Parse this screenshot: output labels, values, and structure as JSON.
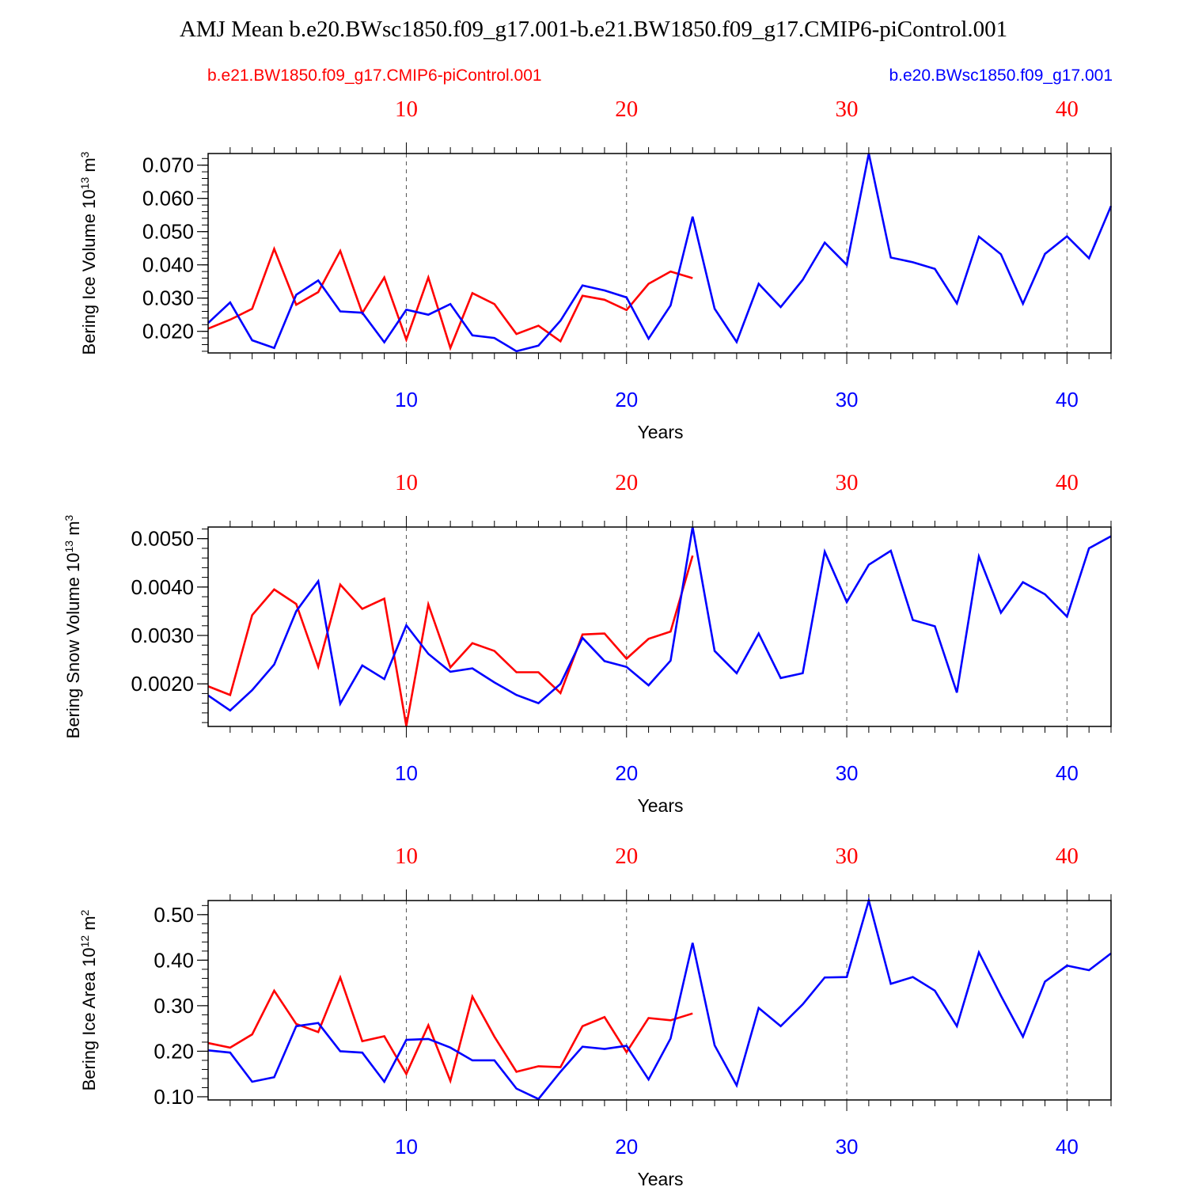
{
  "title": "AMJ Mean b.e20.BWsc1850.f09_g17.001-b.e21.BW1850.f09_g17.CMIP6-piControl.001",
  "colors": {
    "red": "#ff0000",
    "blue": "#0000ff",
    "black": "#000000",
    "grid": "#555555"
  },
  "legend": {
    "red_label": "b.e21.BW1850.f09_g17.CMIP6-piControl.001",
    "blue_label": "b.e20.BWsc1850.f09_g17.001"
  },
  "chart_data": [
    {
      "type": "line",
      "ylabel_main": "Bering Ice Volume 10",
      "ylabel_exp": "13",
      "ylabel_unit": " m",
      "ylabel_unit_exp": "3",
      "xlabel": "Years",
      "xlim": [
        1,
        42
      ],
      "ylim": [
        0.0135,
        0.0735
      ],
      "yticks": [
        0.02,
        0.03,
        0.04,
        0.05,
        0.06,
        0.07
      ],
      "ytick_labels": [
        "0.020",
        "0.030",
        "0.040",
        "0.050",
        "0.060",
        "0.070"
      ],
      "yminor_step": 0.002,
      "xticks": [
        10,
        20,
        30,
        40
      ],
      "xtick_labels_top": [
        "10",
        "20",
        "30",
        "40"
      ],
      "xtick_labels_bottom": [
        "10",
        "20",
        "30",
        "40"
      ],
      "series": [
        {
          "name": "b.e21.BW1850.f09_g17.CMIP6-piControl.001",
          "color": "#ff0000",
          "x_start": 1,
          "values": [
            0.0208,
            0.0235,
            0.0268,
            0.0448,
            0.028,
            0.0318,
            0.0442,
            0.0255,
            0.0362,
            0.0175,
            0.0362,
            0.015,
            0.0315,
            0.0282,
            0.0192,
            0.0217,
            0.017,
            0.0307,
            0.0295,
            0.0264,
            0.0343,
            0.038,
            0.036
          ]
        },
        {
          "name": "b.e20.BWsc1850.f09_g17.001",
          "color": "#0000ff",
          "x_start": 1,
          "values": [
            0.0225,
            0.0287,
            0.0173,
            0.015,
            0.031,
            0.0353,
            0.026,
            0.0256,
            0.0167,
            0.0265,
            0.025,
            0.0282,
            0.0188,
            0.018,
            0.014,
            0.0157,
            0.0232,
            0.0338,
            0.0323,
            0.0302,
            0.0178,
            0.0278,
            0.0545,
            0.0268,
            0.0168,
            0.0343,
            0.0273,
            0.0355,
            0.0467,
            0.04,
            0.0735,
            0.0422,
            0.0408,
            0.0388,
            0.0284,
            0.0485,
            0.0432,
            0.0283,
            0.0433,
            0.0486,
            0.042,
            0.0577
          ]
        }
      ]
    },
    {
      "type": "line",
      "ylabel_main": "Bering Snow Volume 10",
      "ylabel_exp": "13",
      "ylabel_unit": " m",
      "ylabel_unit_exp": "3",
      "xlabel": "Years",
      "xlim": [
        1,
        42
      ],
      "ylim": [
        0.00112,
        0.00524
      ],
      "yticks": [
        0.002,
        0.003,
        0.004,
        0.005
      ],
      "ytick_labels": [
        "0.0020",
        "0.0030",
        "0.0040",
        "0.0050"
      ],
      "yminor_step": 0.0002,
      "xticks": [
        10,
        20,
        30,
        40
      ],
      "xtick_labels_top": [
        "10",
        "20",
        "30",
        "40"
      ],
      "xtick_labels_bottom": [
        "10",
        "20",
        "30",
        "40"
      ],
      "series": [
        {
          "name": "b.e21.BW1850.f09_g17.CMIP6-piControl.001",
          "color": "#ff0000",
          "x_start": 1,
          "values": [
            0.00195,
            0.00177,
            0.00342,
            0.00395,
            0.00365,
            0.00235,
            0.00405,
            0.00355,
            0.00376,
            0.00113,
            0.00364,
            0.00234,
            0.00284,
            0.00268,
            0.00224,
            0.00224,
            0.00181,
            0.00302,
            0.00304,
            0.00252,
            0.00293,
            0.00308,
            0.00465
          ]
        },
        {
          "name": "b.e20.BWsc1850.f09_g17.001",
          "color": "#0000ff",
          "x_start": 1,
          "values": [
            0.00176,
            0.00145,
            0.00187,
            0.0024,
            0.0035,
            0.00412,
            0.00159,
            0.00238,
            0.0021,
            0.00321,
            0.00262,
            0.00225,
            0.00232,
            0.00203,
            0.00177,
            0.0016,
            0.002,
            0.00295,
            0.00247,
            0.00235,
            0.00197,
            0.00248,
            0.00524,
            0.00268,
            0.00222,
            0.00304,
            0.00212,
            0.00222,
            0.00473,
            0.00369,
            0.00446,
            0.00475,
            0.00332,
            0.00319,
            0.00182,
            0.00463,
            0.00347,
            0.0041,
            0.00385,
            0.00339,
            0.0048,
            0.00505
          ]
        }
      ]
    },
    {
      "type": "line",
      "ylabel_main": "Bering Ice Area 10",
      "ylabel_exp": "12",
      "ylabel_unit": " m",
      "ylabel_unit_exp": "2",
      "xlabel": "Years",
      "xlim": [
        1,
        42
      ],
      "ylim": [
        0.093,
        0.531
      ],
      "yticks": [
        0.1,
        0.2,
        0.3,
        0.4,
        0.5
      ],
      "ytick_labels": [
        "0.10",
        "0.20",
        "0.30",
        "0.40",
        "0.50"
      ],
      "yminor_step": 0.02,
      "xticks": [
        10,
        20,
        30,
        40
      ],
      "xtick_labels_top": [
        "10",
        "20",
        "30",
        "40"
      ],
      "xtick_labels_bottom": [
        "10",
        "20",
        "30",
        "40"
      ],
      "series": [
        {
          "name": "b.e21.BW1850.f09_g17.CMIP6-piControl.001",
          "color": "#ff0000",
          "x_start": 1,
          "values": [
            0.218,
            0.208,
            0.237,
            0.333,
            0.26,
            0.242,
            0.362,
            0.222,
            0.233,
            0.15,
            0.257,
            0.135,
            0.32,
            0.232,
            0.155,
            0.167,
            0.165,
            0.255,
            0.275,
            0.198,
            0.273,
            0.268,
            0.283
          ]
        },
        {
          "name": "b.e20.BWsc1850.f09_g17.001",
          "color": "#0000ff",
          "x_start": 1,
          "values": [
            0.202,
            0.197,
            0.133,
            0.143,
            0.255,
            0.262,
            0.2,
            0.197,
            0.133,
            0.225,
            0.227,
            0.208,
            0.18,
            0.18,
            0.118,
            0.095,
            0.155,
            0.21,
            0.205,
            0.212,
            0.138,
            0.228,
            0.438,
            0.213,
            0.125,
            0.295,
            0.255,
            0.303,
            0.362,
            0.363,
            0.531,
            0.348,
            0.363,
            0.333,
            0.255,
            0.417,
            0.322,
            0.232,
            0.353,
            0.388,
            0.378,
            0.415
          ]
        }
      ]
    }
  ]
}
